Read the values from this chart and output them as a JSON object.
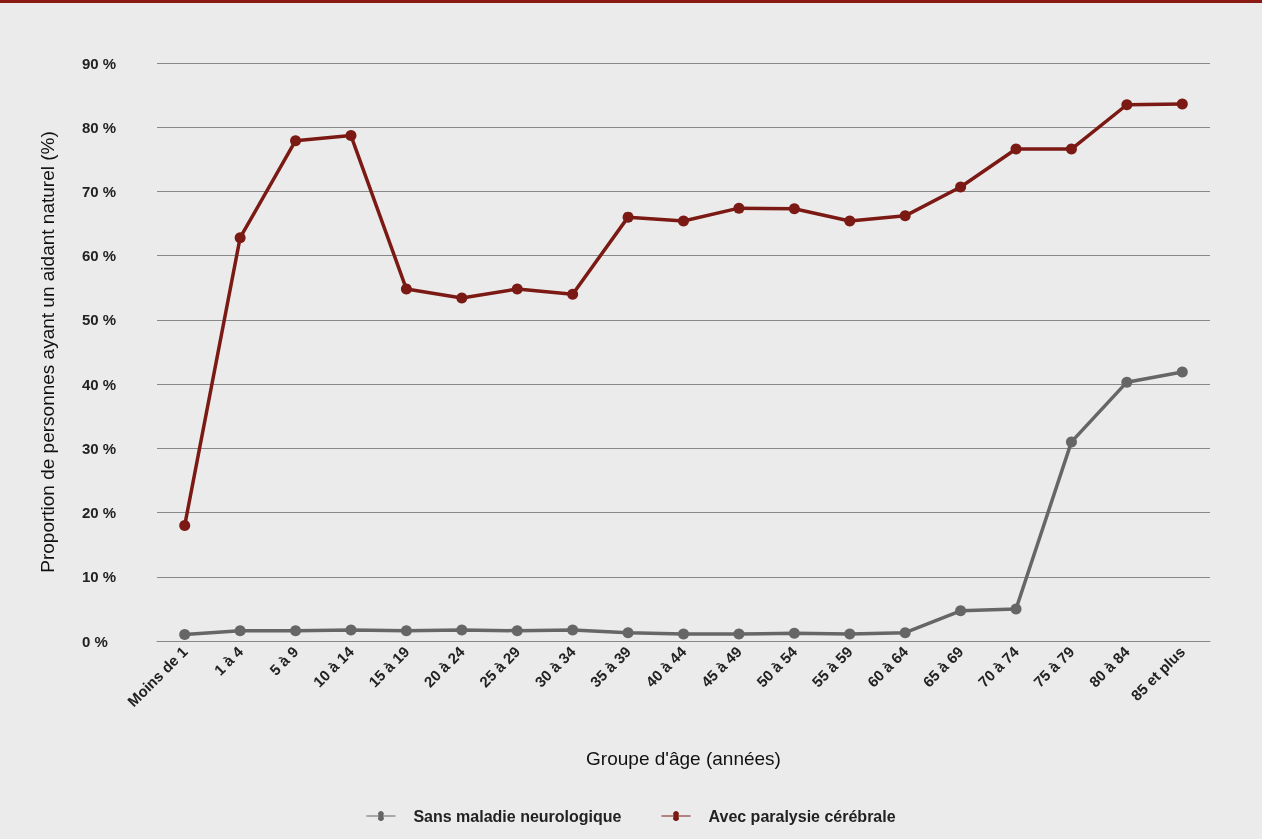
{
  "chart_data": {
    "type": "line",
    "xlabel": "Groupe d'âge (années)",
    "ylabel": "Proportion de personnes ayant un aidant naturel (%)",
    "categories": [
      "Moins de 1",
      "1 à 4",
      "5 à 9",
      "10 à 14",
      "15 à 19",
      "20 à 24",
      "25 à 29",
      "30 à 34",
      "35 à 39",
      "40 à 44",
      "45 à 49",
      "50 à 54",
      "55 à 59",
      "60 à 64",
      "65 à 69",
      "70 à 74",
      "75 à 79",
      "80 à 84",
      "85 et plus"
    ],
    "series": [
      {
        "name": "Sans maladie neurologique",
        "color": "#666666",
        "values": [
          1.0,
          1.6,
          1.6,
          1.7,
          1.6,
          1.7,
          1.6,
          1.7,
          1.3,
          1.1,
          1.1,
          1.2,
          1.1,
          1.3,
          4.7,
          5.0,
          31.0,
          40.3,
          41.9
        ]
      },
      {
        "name": "Avec paralysie cérébrale",
        "color": "#7b1a14",
        "values": [
          18,
          62.8,
          77.9,
          78.7,
          54.8,
          53.4,
          54.8,
          54.0,
          66.0,
          65.4,
          67.4,
          67.3,
          65.4,
          66.2,
          70.7,
          76.6,
          76.6,
          83.5,
          83.6
        ]
      }
    ],
    "ylim": [
      0,
      90
    ],
    "yticks": [
      {
        "value": 0,
        "label": "0 %"
      },
      {
        "value": 10,
        "label": "10 %"
      },
      {
        "value": 20,
        "label": "20 %"
      },
      {
        "value": 30,
        "label": "30 %"
      },
      {
        "value": 40,
        "label": "40 %"
      },
      {
        "value": 50,
        "label": "50 %"
      },
      {
        "value": 60,
        "label": "60 %"
      },
      {
        "value": 70,
        "label": "70 %"
      },
      {
        "value": 80,
        "label": "80 %"
      },
      {
        "value": 90,
        "label": "90 %"
      }
    ],
    "grid": "y",
    "legend": "bottom",
    "marker": "circle",
    "line_style": "solid"
  }
}
